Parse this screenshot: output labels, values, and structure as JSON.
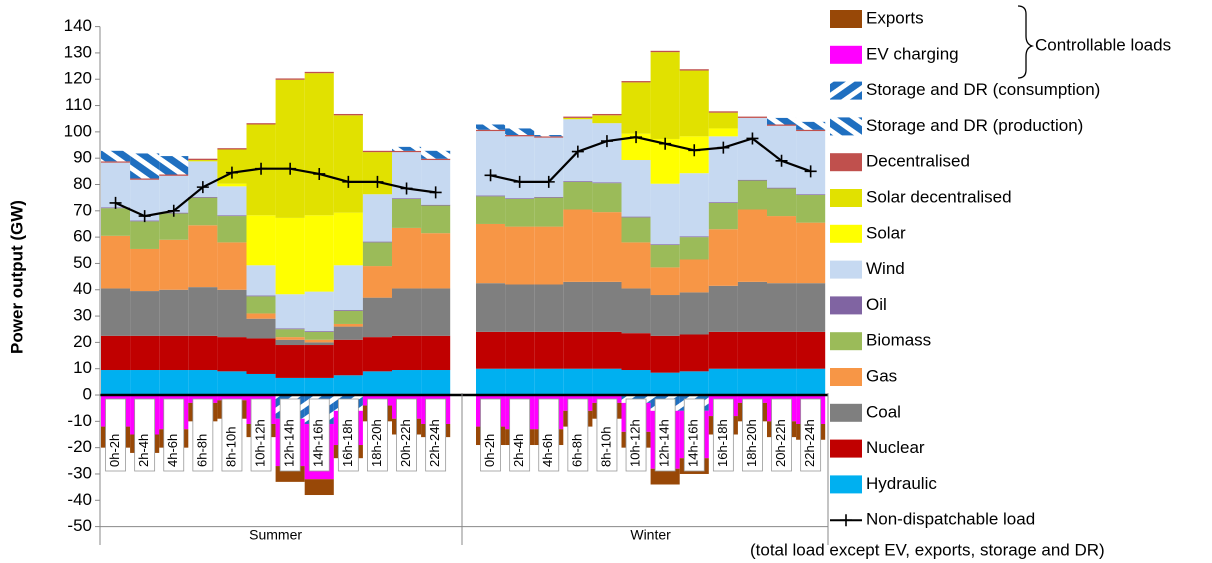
{
  "chart_data": {
    "type": "bar",
    "stacked": true,
    "y_label": "Power output (GW)",
    "ylim": [
      -50,
      140
    ],
    "yticks": [
      -50,
      -40,
      -30,
      -20,
      -10,
      0,
      10,
      20,
      30,
      40,
      50,
      60,
      70,
      80,
      90,
      100,
      110,
      120,
      130,
      140
    ],
    "groups": [
      "Summer",
      "Winter"
    ],
    "categories": [
      "0h-2h",
      "2h-4h",
      "4h-6h",
      "6h-8h",
      "8h-10h",
      "10h-12h",
      "12h-14h",
      "14h-16h",
      "16h-18h",
      "18h-20h",
      "20h-22h",
      "22h-24h",
      "0h-2h",
      "2h-4h",
      "4h-6h",
      "6h-8h",
      "8h-10h",
      "10h-12h",
      "12h-14h",
      "14h-16h",
      "16h-18h",
      "18h-20h",
      "20h-22h",
      "22h-24h"
    ],
    "legend_brace": "Controllable loads",
    "series": [
      {
        "name": "Exports",
        "color": "#984807",
        "values": [
          -8,
          -7,
          -7,
          -7,
          -7,
          -5,
          -6,
          -6,
          -5,
          -6,
          -6,
          -5,
          -7,
          -6,
          -6,
          -6,
          -6,
          -6,
          -6,
          -6,
          -7,
          -7,
          -6,
          -6
        ]
      },
      {
        "name": "EV charging",
        "color": "#ff00ff",
        "values": [
          -12,
          -15,
          -13,
          -3,
          -2,
          -11,
          -18,
          -21,
          -13,
          -4,
          -9,
          -11,
          -12,
          -13,
          -13,
          -6,
          -3,
          -11,
          -22,
          -18,
          -8,
          -3,
          -10,
          -11
        ]
      },
      {
        "name": "Storage and DR (consumption)",
        "color": "#1f6fc0",
        "pattern": "hatch-forward",
        "values": [
          0,
          0,
          0,
          0,
          0,
          0,
          -9,
          -11,
          -6,
          0,
          0,
          0,
          0,
          0,
          0,
          0,
          0,
          -3,
          -6,
          -6,
          0,
          0,
          0,
          0
        ]
      },
      {
        "name": "Storage and DR (production)",
        "color": "#1f6fc0",
        "pattern": "hatch-back",
        "values": [
          4,
          9.5,
          7,
          0,
          0,
          0,
          0,
          0,
          0,
          0,
          1.5,
          3,
          2,
          2.5,
          0.5,
          0,
          0,
          0,
          0,
          0,
          0,
          0,
          2.5,
          3
        ]
      },
      {
        "name": "Decentralised",
        "color": "#c0504d",
        "values": [
          0.5,
          0.5,
          0.5,
          0.5,
          0.5,
          0.5,
          0.5,
          0.5,
          0.5,
          0.5,
          0.5,
          0.5,
          0.5,
          0.5,
          0.5,
          0.5,
          0.5,
          0.5,
          0.5,
          0.5,
          0.5,
          0.5,
          0.5,
          0.5
        ]
      },
      {
        "name": "Solar decentralised",
        "color": "#e1e100",
        "values": [
          0,
          0,
          0,
          0.5,
          13,
          34.5,
          52.5,
          54,
          37,
          16,
          0,
          0,
          0,
          0,
          0,
          0.5,
          3,
          19.5,
          33,
          25,
          6,
          0,
          0,
          0
        ]
      },
      {
        "name": "Solar",
        "color": "#ffff00",
        "values": [
          0,
          0,
          0,
          0,
          1,
          19,
          29,
          29,
          20,
          0,
          0,
          0,
          0,
          0,
          0,
          0,
          0,
          10,
          17,
          14,
          3,
          0,
          0,
          0
        ]
      },
      {
        "name": "Wind",
        "color": "#c6d9f1",
        "values": [
          17,
          15.5,
          14,
          13.5,
          11,
          11.5,
          13,
          15,
          17,
          18,
          17.5,
          17,
          24.5,
          23.5,
          22.5,
          23.5,
          22.5,
          21.5,
          23,
          24,
          25,
          23.5,
          23.5,
          24
        ]
      },
      {
        "name": "Oil",
        "color": "#8064a2",
        "values": [
          0.3,
          0.3,
          0.3,
          0.3,
          0.3,
          0.3,
          0.3,
          0.3,
          0.3,
          0.3,
          0.3,
          0.3,
          0.3,
          0.3,
          0.3,
          0.3,
          0.3,
          0.3,
          0.3,
          0.3,
          0.3,
          0.3,
          0.3,
          0.3
        ]
      },
      {
        "name": "Biomass",
        "color": "#9bbb59",
        "values": [
          10.5,
          10.5,
          10,
          10.5,
          10,
          6.5,
          3,
          3,
          5,
          9,
          11,
          10.5,
          10.5,
          10.5,
          11,
          10.5,
          11,
          9.5,
          8.5,
          8.5,
          10,
          11,
          10.5,
          10.5
        ]
      },
      {
        "name": "Gas",
        "color": "#f79646",
        "values": [
          20,
          16,
          19,
          23.5,
          18,
          2,
          1,
          1,
          1,
          12,
          23,
          21,
          22.5,
          22,
          22,
          27.5,
          26.5,
          17.5,
          10.5,
          12.5,
          21.5,
          27.5,
          25.5,
          23
        ]
      },
      {
        "name": "Coal",
        "color": "#7f7f7f",
        "values": [
          18,
          17,
          17.5,
          18.5,
          18,
          7.5,
          2,
          1,
          5,
          15,
          18,
          18,
          18.5,
          18,
          18,
          19,
          19,
          17,
          15.5,
          16,
          17.5,
          19,
          18.5,
          18.5
        ]
      },
      {
        "name": "Nuclear",
        "color": "#c00000",
        "values": [
          13,
          13,
          13,
          13,
          13,
          13.5,
          12.5,
          12.5,
          13.5,
          13,
          13,
          13,
          14,
          14,
          14,
          14,
          14,
          14,
          14,
          14,
          14,
          14,
          14,
          14
        ]
      },
      {
        "name": "Hydraulic",
        "color": "#00b0f0",
        "values": [
          9.5,
          9.5,
          9.5,
          9.5,
          9,
          8,
          6.5,
          6.5,
          7.5,
          9,
          9.5,
          9.5,
          10,
          10,
          10,
          10,
          10,
          9.5,
          8.5,
          9,
          10,
          10,
          10,
          10
        ]
      },
      {
        "name": "Non-dispatchable load",
        "note": "(total load except EV, exports, storage and DR)",
        "type": "line",
        "color": "#000000",
        "values": [
          73,
          68,
          70,
          79,
          84.5,
          86,
          86,
          84,
          81,
          81,
          78.5,
          77,
          83.5,
          81,
          81,
          92.5,
          96.5,
          98,
          95.5,
          93,
          94,
          97.5,
          89,
          85
        ]
      }
    ]
  }
}
